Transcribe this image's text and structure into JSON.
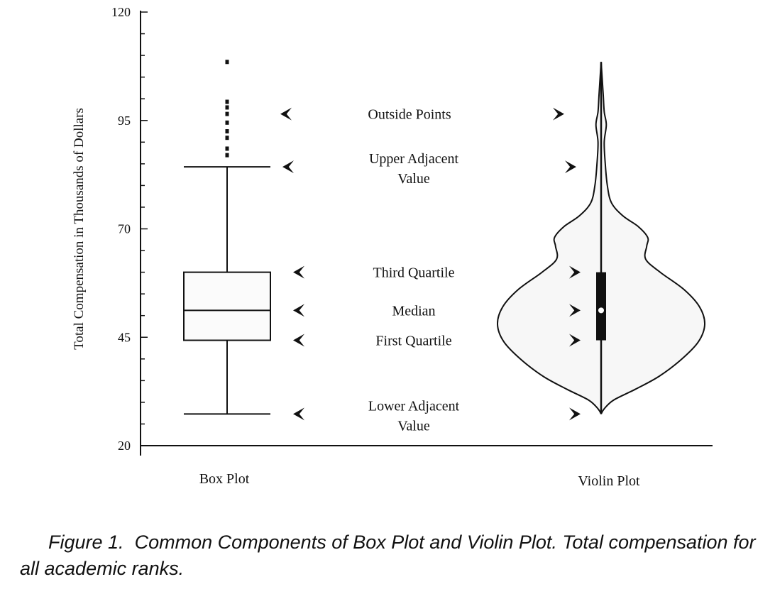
{
  "chart_data": {
    "type": "box",
    "ylabel": "Total Compensation in Thousands of Dollars",
    "ylim": [
      20,
      120
    ],
    "yticks": [
      "20",
      "45",
      "70",
      "95",
      "120"
    ],
    "categories": [
      "Box Plot",
      "Violin Plot"
    ],
    "box": {
      "lower_adjacent": 27.3,
      "first_quartile": 44.3,
      "median": 51.2,
      "third_quartile": 60.0,
      "upper_adjacent": 84.3,
      "outside_points": [
        87.0,
        88.5,
        91.0,
        92.5,
        94.5,
        96.5,
        98.0,
        99.3,
        108.5
      ]
    },
    "violin": {
      "min": 27.3,
      "first_quartile": 44.3,
      "median": 51.2,
      "third_quartile": 60.0,
      "max": 108.5,
      "density_profile": [
        {
          "y": 27.3,
          "w": 0.0
        },
        {
          "y": 28.5,
          "w": 0.03
        },
        {
          "y": 30.5,
          "w": 0.12
        },
        {
          "y": 33.0,
          "w": 0.33
        },
        {
          "y": 36.0,
          "w": 0.56
        },
        {
          "y": 40.0,
          "w": 0.78
        },
        {
          "y": 44.0,
          "w": 0.94
        },
        {
          "y": 48.0,
          "w": 1.0
        },
        {
          "y": 52.0,
          "w": 0.95
        },
        {
          "y": 56.0,
          "w": 0.8
        },
        {
          "y": 60.0,
          "w": 0.57
        },
        {
          "y": 63.0,
          "w": 0.43
        },
        {
          "y": 66.0,
          "w": 0.44
        },
        {
          "y": 68.0,
          "w": 0.45
        },
        {
          "y": 70.5,
          "w": 0.36
        },
        {
          "y": 73.0,
          "w": 0.21
        },
        {
          "y": 76.0,
          "w": 0.1
        },
        {
          "y": 80.0,
          "w": 0.06
        },
        {
          "y": 85.0,
          "w": 0.04
        },
        {
          "y": 90.0,
          "w": 0.03
        },
        {
          "y": 94.0,
          "w": 0.05
        },
        {
          "y": 97.0,
          "w": 0.03
        },
        {
          "y": 101.0,
          "w": 0.02
        },
        {
          "y": 108.5,
          "w": 0.0
        }
      ]
    },
    "annotations": [
      {
        "lines": [
          "Outside Points"
        ],
        "y": 96.5
      },
      {
        "lines": [
          "Upper Adjacent",
          "Value"
        ],
        "y": 84.3
      },
      {
        "lines": [
          "Third Quartile"
        ],
        "y": 60.0
      },
      {
        "lines": [
          "Median"
        ],
        "y": 51.2
      },
      {
        "lines": [
          "First Quartile"
        ],
        "y": 44.3
      },
      {
        "lines": [
          "Lower Adjacent",
          "Value"
        ],
        "y": 27.3
      }
    ]
  },
  "caption": {
    "label": "Figure 1.",
    "text": "Common Components of Box Plot and Violin Plot. Total compensation for all academic ranks."
  }
}
